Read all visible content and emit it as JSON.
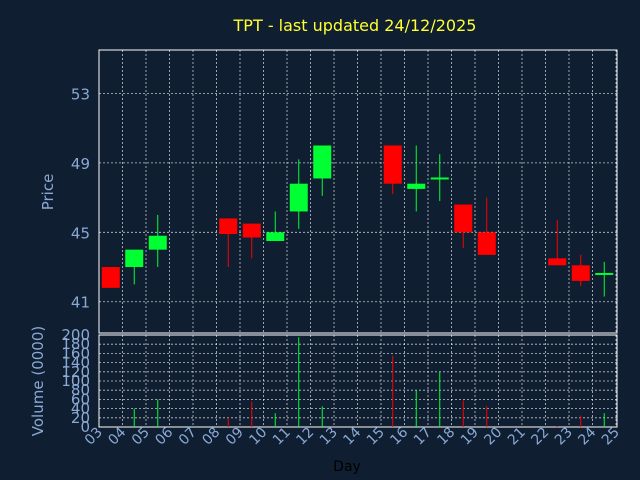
{
  "colors": {
    "background": "#0f1e30",
    "up": "#00ff33",
    "down": "#ff0000",
    "title": "#ffff33",
    "axis_text": "#8aa9d6",
    "grid": "#ffffff"
  },
  "chart_data": {
    "type": "candlestick",
    "title": "TPT - last updated 24/12/2025",
    "xlabel": "Day",
    "ylabel": "Price",
    "volume_label": "Volume (0000)",
    "x_ticks": [
      "03",
      "04",
      "05",
      "06",
      "07",
      "08",
      "09",
      "10",
      "11",
      "12",
      "13",
      "14",
      "15",
      "16",
      "17",
      "18",
      "19",
      "20",
      "21",
      "22",
      "23",
      "24",
      "25"
    ],
    "price_ylim": [
      39.2,
      55.5
    ],
    "price_ticks": [
      41,
      45,
      49,
      53
    ],
    "volume_ylim": [
      0,
      200
    ],
    "volume_ticks": [
      0,
      20,
      40,
      60,
      80,
      100,
      120,
      140,
      160,
      180,
      200
    ],
    "grid": true,
    "candles": [
      {
        "day": "03",
        "open": 43.0,
        "high": 43.0,
        "low": 41.8,
        "close": 41.8,
        "volume": 0
      },
      {
        "day": "04",
        "open": 43.0,
        "high": 44.0,
        "low": 42.0,
        "close": 44.0,
        "volume": 40
      },
      {
        "day": "05",
        "open": 44.0,
        "high": 46.0,
        "low": 43.0,
        "close": 44.8,
        "volume": 60
      },
      {
        "day": "08",
        "open": 45.8,
        "high": 45.8,
        "low": 43.0,
        "close": 44.9,
        "volume": 20
      },
      {
        "day": "09",
        "open": 45.5,
        "high": 45.5,
        "low": 43.5,
        "close": 44.7,
        "volume": 55
      },
      {
        "day": "10",
        "open": 44.5,
        "high": 46.2,
        "low": 44.5,
        "close": 45.0,
        "volume": 30
      },
      {
        "day": "11",
        "open": 46.2,
        "high": 49.2,
        "low": 45.2,
        "close": 47.8,
        "volume": 195
      },
      {
        "day": "12",
        "open": 48.1,
        "high": 50.0,
        "low": 47.1,
        "close": 50.0,
        "volume": 45
      },
      {
        "day": "15",
        "open": 50.0,
        "high": 50.0,
        "low": 47.2,
        "close": 47.8,
        "volume": 155
      },
      {
        "day": "16",
        "open": 47.5,
        "high": 50.0,
        "low": 46.2,
        "close": 47.8,
        "volume": 80
      },
      {
        "day": "17",
        "open": 48.0,
        "high": 49.5,
        "low": 46.8,
        "close": 48.1,
        "volume": 120
      },
      {
        "day": "18",
        "open": 46.6,
        "high": 46.6,
        "low": 44.1,
        "close": 45.0,
        "volume": 58
      },
      {
        "day": "19",
        "open": 45.0,
        "high": 47.0,
        "low": 43.7,
        "close": 43.7,
        "volume": 45
      },
      {
        "day": "22",
        "open": 43.5,
        "high": 45.7,
        "low": 43.1,
        "close": 43.1,
        "volume": 2
      },
      {
        "day": "23",
        "open": 43.1,
        "high": 43.7,
        "low": 41.9,
        "close": 42.2,
        "volume": 25
      },
      {
        "day": "24",
        "open": 42.5,
        "high": 43.3,
        "low": 41.3,
        "close": 42.6,
        "volume": 30
      }
    ]
  }
}
